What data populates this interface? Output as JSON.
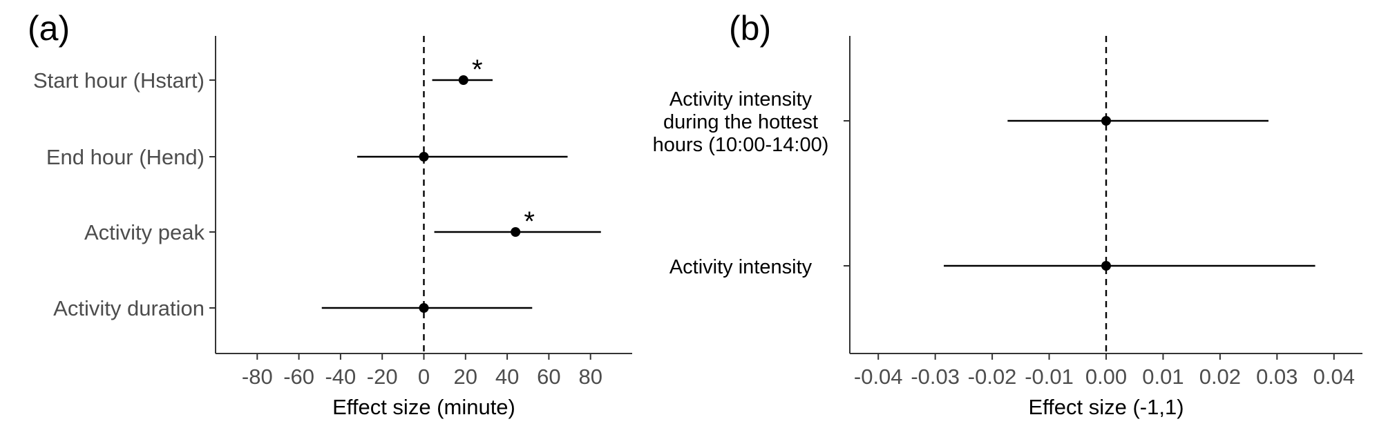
{
  "chart_data": [
    {
      "panel_label": "(a)",
      "type": "forest",
      "xlabel": "Effect size (minute)",
      "xlim": [
        -100,
        100
      ],
      "xticks": [
        -80,
        -60,
        -40,
        -20,
        0,
        20,
        40,
        60,
        80
      ],
      "xtick_labels": [
        "-80",
        "-60",
        "-40",
        "-20",
        "0",
        "20",
        "40",
        "60",
        "80"
      ],
      "reference_line": 0,
      "grid": false,
      "rows": [
        {
          "label": "Start hour (Hstart)",
          "estimate": 19,
          "lower": 4,
          "upper": 33,
          "significant": true,
          "marker": "*"
        },
        {
          "label": "End hour (Hend)",
          "estimate": 0,
          "lower": -32,
          "upper": 69,
          "significant": false,
          "marker": ""
        },
        {
          "label": "Activity peak",
          "estimate": 44,
          "lower": 5,
          "upper": 85,
          "significant": true,
          "marker": "*"
        },
        {
          "label": "Activity duration",
          "estimate": 0,
          "lower": -49,
          "upper": 52,
          "significant": false,
          "marker": ""
        }
      ]
    },
    {
      "panel_label": "(b)",
      "type": "forest",
      "xlabel": "Effect size (-1,1)",
      "xlim": [
        -0.045,
        0.045
      ],
      "xticks": [
        -0.04,
        -0.03,
        -0.02,
        -0.01,
        0.0,
        0.01,
        0.02,
        0.03,
        0.04
      ],
      "xtick_labels": [
        "-0.04",
        "-0.03",
        "-0.02",
        "-0.01",
        "0.00",
        "0.01",
        "0.02",
        "0.03",
        "0.04"
      ],
      "reference_line": 0,
      "grid": false,
      "rows": [
        {
          "label_lines": [
            "Activity intensity",
            "during the hottest",
            "hours (10:00-14:00)"
          ],
          "estimate": 0.0,
          "lower": -0.0173,
          "upper": 0.0285,
          "significant": false,
          "marker": ""
        },
        {
          "label_lines": [
            "Activity intensity"
          ],
          "estimate": 0.0,
          "lower": -0.0285,
          "upper": 0.0367,
          "significant": false,
          "marker": ""
        }
      ]
    }
  ]
}
